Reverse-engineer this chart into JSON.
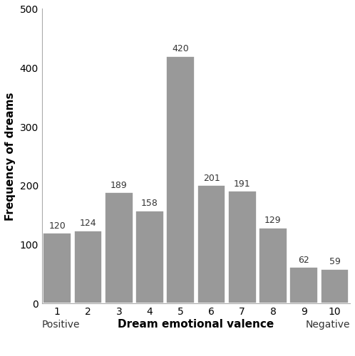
{
  "categories": [
    1,
    2,
    3,
    4,
    5,
    6,
    7,
    8,
    9,
    10
  ],
  "values": [
    120,
    124,
    189,
    158,
    420,
    201,
    191,
    129,
    62,
    59
  ],
  "bar_color": "#999999",
  "bar_edgecolor": "#ffffff",
  "ylabel": "Frequency of dreams",
  "xlabel": "Dream emotional valence",
  "xlabel_left": "Positive",
  "xlabel_right": "Negative",
  "ylim": [
    0,
    500
  ],
  "yticks": [
    0,
    100,
    200,
    300,
    400,
    500
  ],
  "bar_width": 0.92,
  "annotation_fontsize": 9,
  "axis_label_fontsize": 11,
  "tick_label_fontsize": 10,
  "ylabel_fontsize": 11,
  "background_color": "#ffffff"
}
